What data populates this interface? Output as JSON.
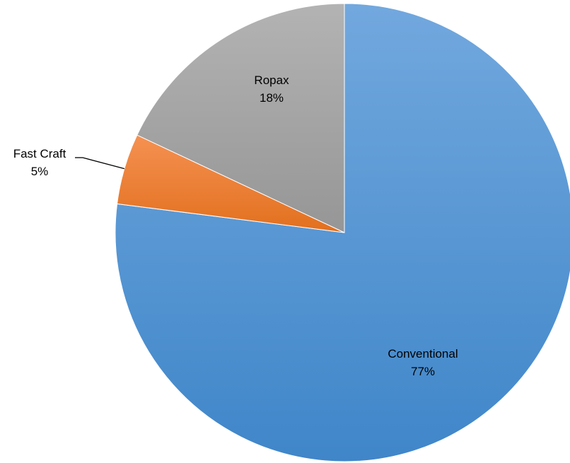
{
  "chart_data": {
    "type": "pie",
    "start": "top",
    "direction": "clockwise",
    "slices": [
      {
        "label": "Conventional",
        "value": 77,
        "value_label": "77%",
        "color": "#5B9BD5"
      },
      {
        "label": "Fast Craft",
        "value": 5,
        "value_label": "5%",
        "color": "#ED7D31"
      },
      {
        "label": "Ropax",
        "value": 18,
        "value_label": "18%",
        "color": "#A5A5A5"
      }
    ],
    "title": "",
    "legend": "none"
  }
}
